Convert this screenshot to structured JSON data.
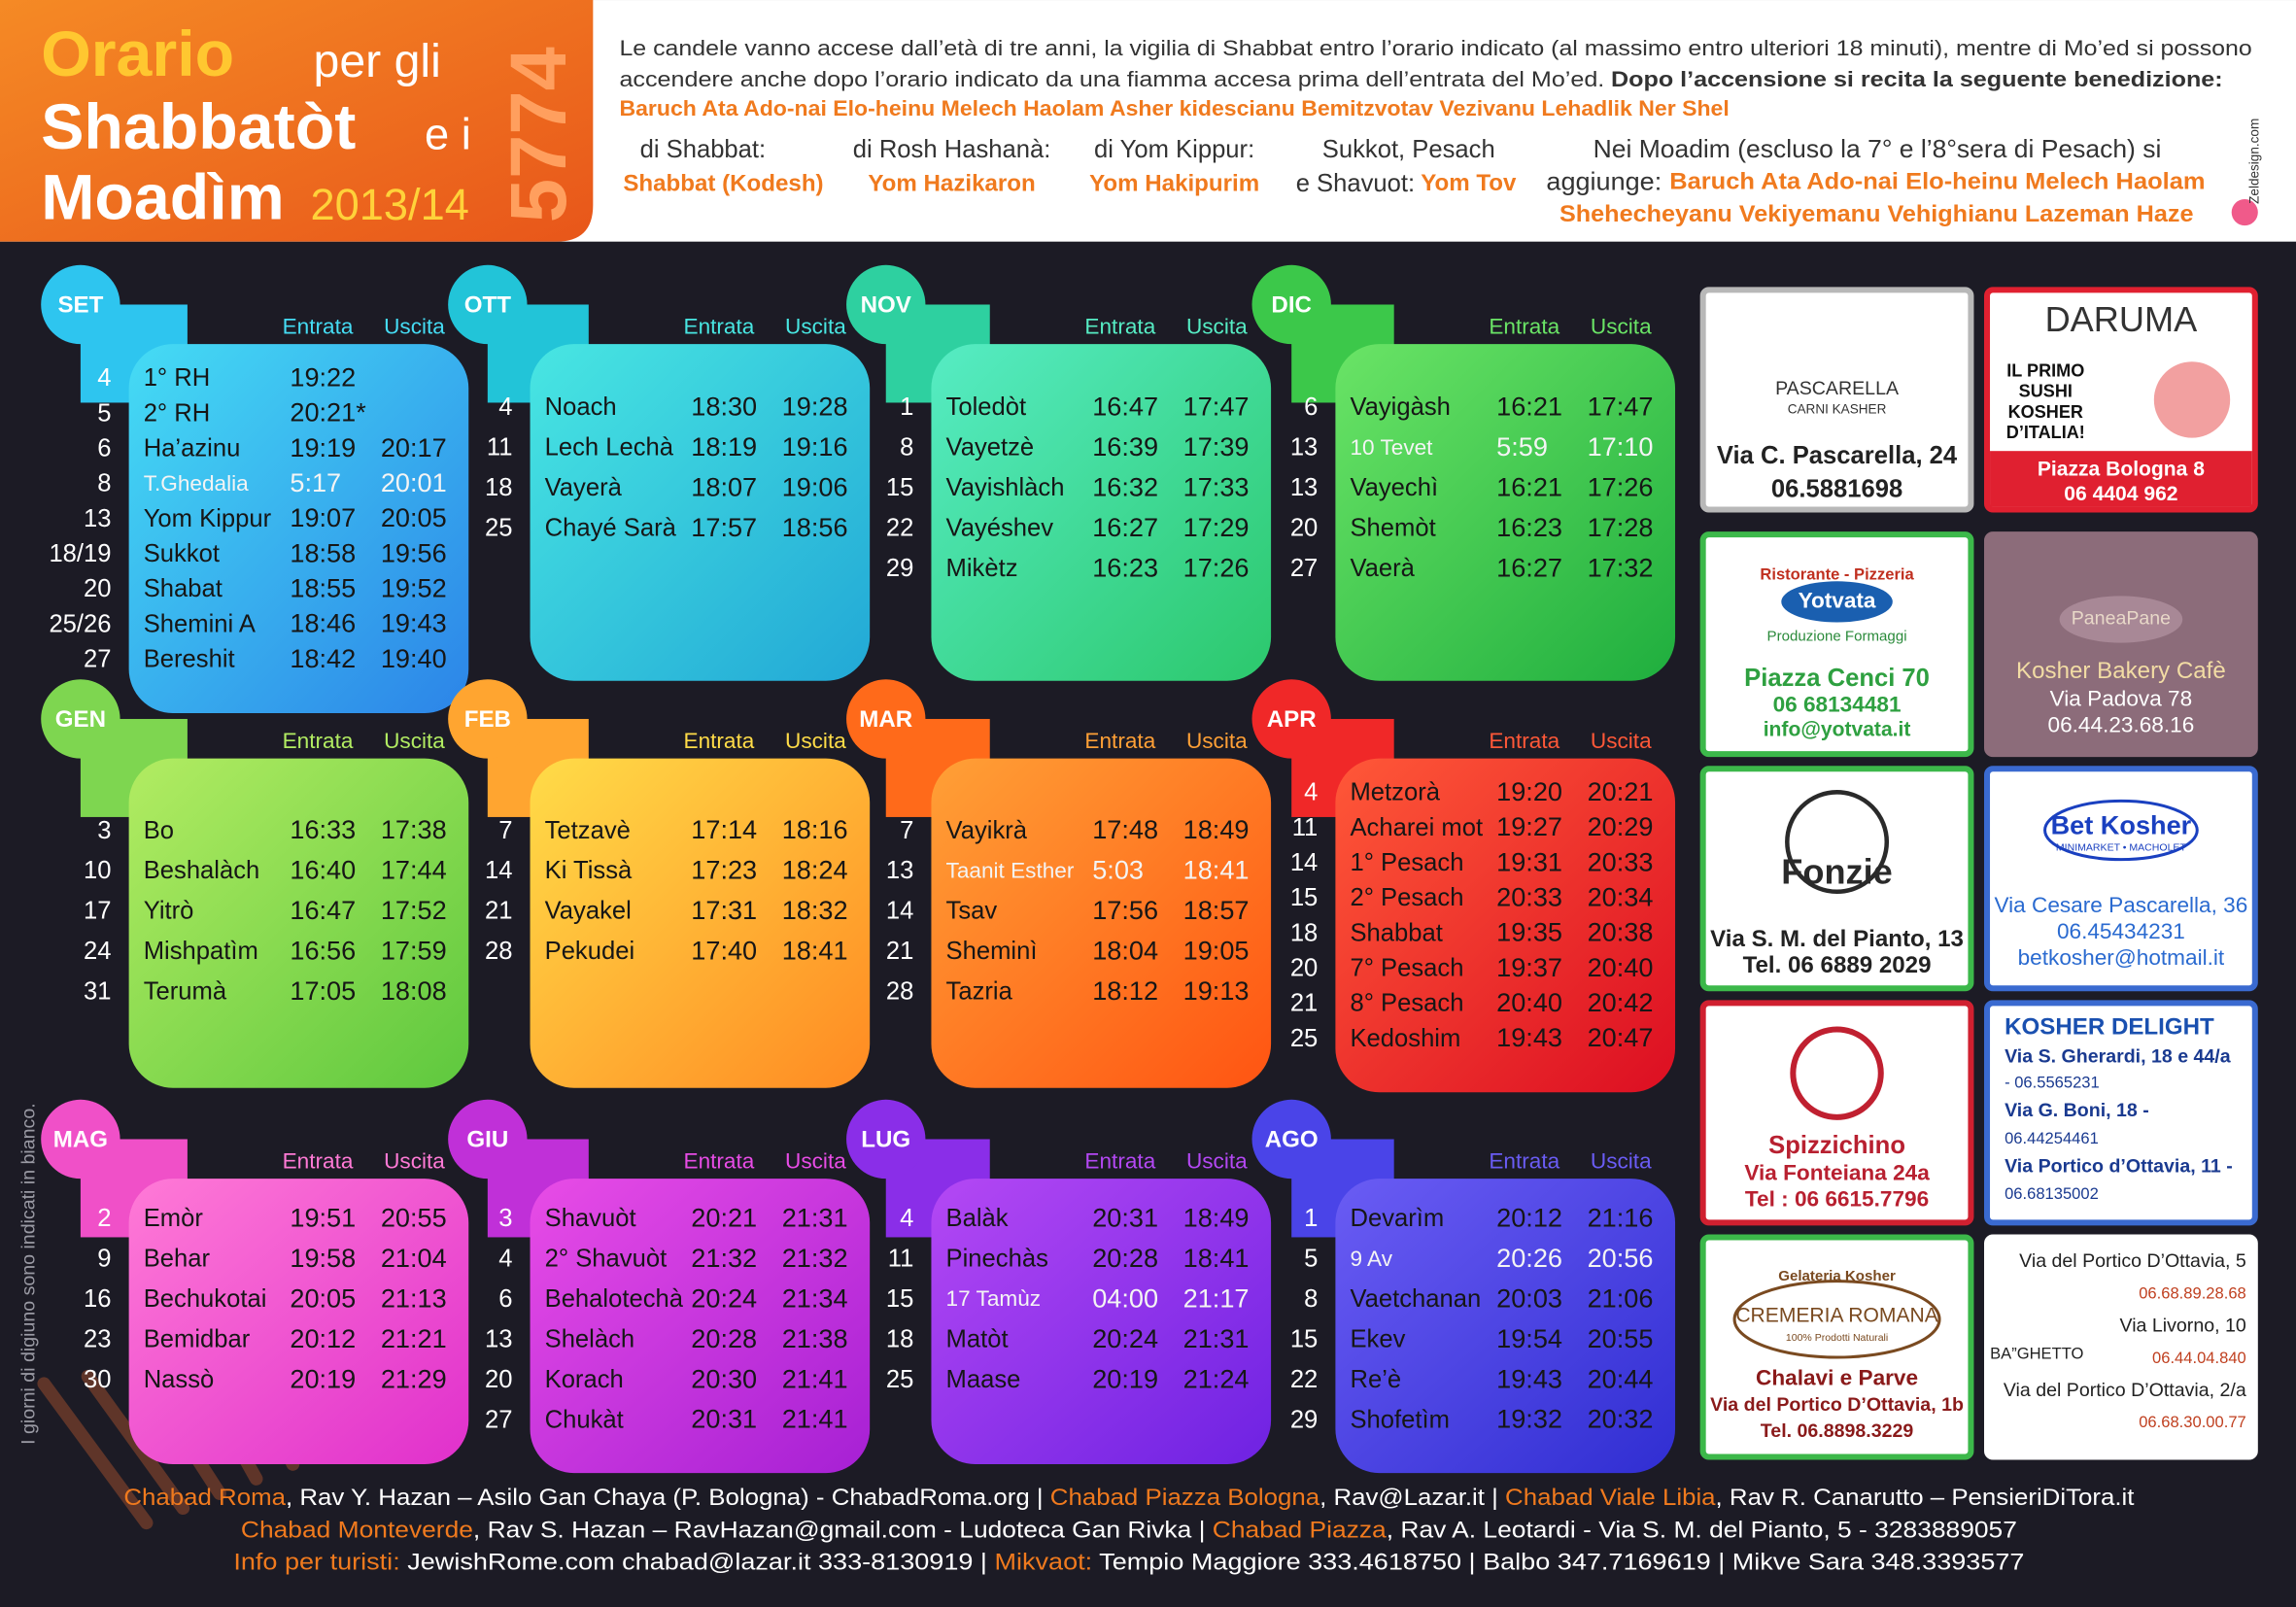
{
  "header": {
    "title": {
      "line1": "Orario",
      "line1b": "per gli",
      "line2": "Shabbatòt",
      "line2b": "e i",
      "line3": "Moadìm",
      "years": "2013/14",
      "hebrew_year": "5774"
    },
    "intro": [
      "Le candele vanno accese dall’età di tre anni, la vigilia di Shabbat entro l’orario indicato (al massimo entro ulteriori 18 minuti), mentre di Mo’ed si possono",
      "accendere anche dopo l’orario indicato da una fiamma accesa prima dell’entrata del Mo’ed.",
      "Dopo l’accensione si recita la seguente benedizione:",
      "Baruch Ata Ado-nai Elo-heinu Melech Haolam Asher kidescianu Bemitzvotav Vezivanu Lehadlik Ner Shel"
    ],
    "blessings": [
      {
        "label": "di Shabbat:",
        "text": "Shabbat (Kodesh)"
      },
      {
        "label": "di Rosh Hashanà:",
        "text": "Yom Hazikaron"
      },
      {
        "label": "di Yom Kippur:",
        "text": "Yom Hakipurim"
      },
      {
        "label": [
          "Sukkot, Pesach",
          "e Shavuot:"
        ],
        "text": "Yom Tov"
      },
      {
        "label": [
          "Nei Moadim (escluso la 7° e l’8°sera di Pesach) si",
          "aggiunge:"
        ],
        "text": [
          "Baruch Ata Ado-nai Elo-heinu Melech Haolam",
          "Shehecheyanu Vekiyemanu Vehighianu Lazeman Haze"
        ]
      }
    ],
    "credit": "Zeldesign.com"
  },
  "columns": [
    "Entrata",
    "Uscita"
  ],
  "months": [
    {
      "name": "SET",
      "rows": [
        {
          "day": "4",
          "name": "1° RH",
          "entrata": "19:22"
        },
        {
          "day": "5",
          "name": "2° RH",
          "entrata": "20:21*"
        },
        {
          "day": "6",
          "name": "Ha’azinu",
          "entrata": "19:19",
          "uscita": "20:17"
        },
        {
          "day": "8",
          "name": "T.Ghedalia",
          "entrata": "5:17",
          "uscita": "20:01",
          "fast": true
        },
        {
          "day": "13",
          "name": "Yom Kippur",
          "entrata": "19:07",
          "uscita": "20:05"
        },
        {
          "day": "18/19",
          "name": "Sukkot",
          "entrata": "18:58",
          "uscita": "19:56"
        },
        {
          "day": "20",
          "name": "Shabat",
          "entrata": "18:55",
          "uscita": "19:52"
        },
        {
          "day": "25/26",
          "name": "Shemini A",
          "entrata": "18:46",
          "uscita": "19:43"
        },
        {
          "day": "27",
          "name": "Bereshit",
          "entrata": "18:42",
          "uscita": "19:40"
        }
      ]
    },
    {
      "name": "OTT",
      "rows": [
        {
          "day": "4",
          "name": "Noach",
          "entrata": "18:30",
          "uscita": "19:28"
        },
        {
          "day": "11",
          "name": "Lech Lechà",
          "entrata": "18:19",
          "uscita": "19:16"
        },
        {
          "day": "18",
          "name": "Vayerà",
          "entrata": "18:07",
          "uscita": "19:06"
        },
        {
          "day": "25",
          "name": "Chayé Sarà",
          "entrata": "17:57",
          "uscita": "18:56"
        }
      ]
    },
    {
      "name": "NOV",
      "rows": [
        {
          "day": "1",
          "name": "Toledòt",
          "entrata": "16:47",
          "uscita": "17:47"
        },
        {
          "day": "8",
          "name": "Vayetzè",
          "entrata": "16:39",
          "uscita": "17:39"
        },
        {
          "day": "15",
          "name": "Vayishlàch",
          "entrata": "16:32",
          "uscita": "17:33"
        },
        {
          "day": "22",
          "name": "Vayéshev",
          "entrata": "16:27",
          "uscita": "17:29"
        },
        {
          "day": "29",
          "name": "Mikètz",
          "entrata": "16:23",
          "uscita": "17:26"
        }
      ]
    },
    {
      "name": "DIC",
      "rows": [
        {
          "day": "6",
          "name": "Vayigàsh",
          "entrata": "16:21",
          "uscita": "17:47"
        },
        {
          "day": "13",
          "name": "10 Tevet",
          "entrata": "5:59",
          "uscita": "17:10",
          "fast": true
        },
        {
          "day": "13",
          "name": "Vayechì",
          "entrata": "16:21",
          "uscita": "17:26"
        },
        {
          "day": "20",
          "name": "Shemòt",
          "entrata": "16:23",
          "uscita": "17:28"
        },
        {
          "day": "27",
          "name": "Vaerà",
          "entrata": "16:27",
          "uscita": "17:32"
        }
      ]
    },
    {
      "name": "GEN",
      "rows": [
        {
          "day": "3",
          "name": "Bo",
          "entrata": "16:33",
          "uscita": "17:38"
        },
        {
          "day": "10",
          "name": "Beshalàch",
          "entrata": "16:40",
          "uscita": "17:44"
        },
        {
          "day": "17",
          "name": "Yitrò",
          "entrata": "16:47",
          "uscita": "17:52"
        },
        {
          "day": "24",
          "name": "Mishpatìm",
          "entrata": "16:56",
          "uscita": "17:59"
        },
        {
          "day": "31",
          "name": "Terumà",
          "entrata": "17:05",
          "uscita": "18:08"
        }
      ]
    },
    {
      "name": "FEB",
      "rows": [
        {
          "day": "7",
          "name": "Tetzavè",
          "entrata": "17:14",
          "uscita": "18:16"
        },
        {
          "day": "14",
          "name": "Ki Tissà",
          "entrata": "17:23",
          "uscita": "18:24"
        },
        {
          "day": "21",
          "name": "Vayakel",
          "entrata": "17:31",
          "uscita": "18:32"
        },
        {
          "day": "28",
          "name": "Pekudei",
          "entrata": "17:40",
          "uscita": "18:41"
        }
      ]
    },
    {
      "name": "MAR",
      "rows": [
        {
          "day": "7",
          "name": "Vayikrà",
          "entrata": "17:48",
          "uscita": "18:49"
        },
        {
          "day": "13",
          "name": "Taanit Esther",
          "entrata": "5:03",
          "uscita": "18:41",
          "fast": true
        },
        {
          "day": "14",
          "name": "Tsav",
          "entrata": "17:56",
          "uscita": "18:57"
        },
        {
          "day": "21",
          "name": "Sheminì",
          "entrata": "18:04",
          "uscita": "19:05"
        },
        {
          "day": "28",
          "name": "Tazria",
          "entrata": "18:12",
          "uscita": "19:13"
        }
      ]
    },
    {
      "name": "APR",
      "rows": [
        {
          "day": "4",
          "name": "Metzorà",
          "entrata": "19:20",
          "uscita": "20:21"
        },
        {
          "day": "11",
          "name": "Acharei mot",
          "entrata": "19:27",
          "uscita": "20:29"
        },
        {
          "day": "14",
          "name": "1° Pesach",
          "entrata": "19:31",
          "uscita": "20:33"
        },
        {
          "day": "15",
          "name": "2° Pesach",
          "entrata": "20:33",
          "uscita": "20:34"
        },
        {
          "day": "18",
          "name": "Shabbat",
          "entrata": "19:35",
          "uscita": "20:38"
        },
        {
          "day": "20",
          "name": "7° Pesach",
          "entrata": "19:37",
          "uscita": "20:40"
        },
        {
          "day": "21",
          "name": "8° Pesach",
          "entrata": "20:40",
          "uscita": "20:42"
        },
        {
          "day": "25",
          "name": "Kedoshim",
          "entrata": "19:43",
          "uscita": "20:47"
        }
      ]
    },
    {
      "name": "MAG",
      "rows": [
        {
          "day": "2",
          "name": "Emòr",
          "entrata": "19:51",
          "uscita": "20:55"
        },
        {
          "day": "9",
          "name": "Behar",
          "entrata": "19:58",
          "uscita": "21:04"
        },
        {
          "day": "16",
          "name": "Bechukotai",
          "entrata": "20:05",
          "uscita": "21:13"
        },
        {
          "day": "23",
          "name": "Bemidbar",
          "entrata": "20:12",
          "uscita": "21:21"
        },
        {
          "day": "30",
          "name": "Nassò",
          "entrata": "20:19",
          "uscita": "21:29"
        }
      ]
    },
    {
      "name": "GIU",
      "rows": [
        {
          "day": "3",
          "name": "Shavuòt",
          "entrata": "20:21",
          "uscita": "21:31"
        },
        {
          "day": "4",
          "name": "2° Shavuòt",
          "entrata": "21:32",
          "uscita": "21:32"
        },
        {
          "day": "6",
          "name": "Behalotechà",
          "entrata": "20:24",
          "uscita": "21:34"
        },
        {
          "day": "13",
          "name": "Shelàch",
          "entrata": "20:28",
          "uscita": "21:38"
        },
        {
          "day": "20",
          "name": "Korach",
          "entrata": "20:30",
          "uscita": "21:41"
        },
        {
          "day": "27",
          "name": "Chukàt",
          "entrata": "20:31",
          "uscita": "21:41"
        }
      ]
    },
    {
      "name": "LUG",
      "rows": [
        {
          "day": "4",
          "name": "Balàk",
          "entrata": "20:31",
          "uscita": "18:49"
        },
        {
          "day": "11",
          "name": "Pinechàs",
          "entrata": "20:28",
          "uscita": "18:41"
        },
        {
          "day": "15",
          "name": "17 Tamùz",
          "entrata": "04:00",
          "uscita": "21:17",
          "fast": true
        },
        {
          "day": "18",
          "name": "Matòt",
          "entrata": "20:24",
          "uscita": "21:31"
        },
        {
          "day": "25",
          "name": "Maase",
          "entrata": "20:19",
          "uscita": "21:24"
        }
      ]
    },
    {
      "name": "AGO",
      "rows": [
        {
          "day": "1",
          "name": "Devarìm",
          "entrata": "20:12",
          "uscita": "21:16"
        },
        {
          "day": "5",
          "name": "9 Av",
          "entrata": "20:26",
          "uscita": "20:56",
          "fast": true
        },
        {
          "day": "8",
          "name": "Vaetchanan",
          "entrata": "20:03",
          "uscita": "21:06"
        },
        {
          "day": "15",
          "name": "Ekev",
          "entrata": "19:54",
          "uscita": "20:55"
        },
        {
          "day": "22",
          "name": "Re’è",
          "entrata": "19:43",
          "uscita": "20:44"
        },
        {
          "day": "29",
          "name": "Shofetìm",
          "entrata": "19:32",
          "uscita": "20:32"
        }
      ]
    }
  ],
  "ads": [
    [
      "PASCARELLA",
      "CARNI KASHER",
      "Via C. Pascarella, 24",
      "06.5881698"
    ],
    [
      "DARUMA",
      "IL PRIMO",
      "SUSHI",
      "KOSHER",
      "D’ITALIA!",
      "Piazza Bologna 8",
      "06 4404 962"
    ],
    [
      "Ristorante - Pizzeria",
      "Yotvata",
      "Produzione Formaggi",
      "Piazza Cenci 70",
      "06 68134481",
      "info@yotvata.it"
    ],
    [
      "PaneaPane",
      "Kosher Bakery Cafè",
      "Via Padova 78",
      "06.44.23.68.16"
    ],
    [
      "Fonzie",
      "Via S. M. del Pianto, 13",
      "Tel. 06 6889 2029"
    ],
    [
      "Bet Kosher",
      "MINIMARKET • MACHOLET",
      "Via Cesare Pascarella, 36",
      "06.45434231",
      "betkosher@hotmail.it"
    ],
    [
      "Spizzichino",
      "Via Fonteiana 24a",
      "Tel : 06 6615.7796"
    ],
    [
      "KOSHER DELIGHT",
      "Via S. Gherardi, 18 e 44/a",
      "- 06.5565231",
      "Via G. Boni, 18 -",
      "06.44254461",
      "Via Portico d’Ottavia, 11 -",
      "06.68135002"
    ],
    [
      "Gelateria Kosher",
      "CREMERIA ROMANA",
      "100% Prodotti Naturali",
      "Chalavi e Parve",
      "Via del Portico D’Ottavia, 1b",
      "Tel. 06.8898.3229"
    ],
    [
      "Via del Portico D’Ottavia, 5",
      "06.68.89.28.68",
      "Via Livorno, 10",
      "06.44.04.840",
      "Via del Portico D’Ottavia, 2/a",
      "06.68.30.00.77",
      "BA”GHETTO"
    ]
  ],
  "side_note": "I giorni di digiuno sono indicati in bianco.",
  "footer": [
    [
      "Chabad Roma",
      ", Rav Y. Hazan – Asilo Gan Chaya (P. Bologna) - ChabadRoma.org | ",
      "Chabad Piazza Bologna",
      ", Rav@Lazar.it | ",
      "Chabad Viale Libia",
      ", Rav R. Canarutto – PensieriDiTora.it"
    ],
    [
      "Chabad Monteverde",
      ", Rav S. Hazan – RavHazan@gmail.com - Ludoteca Gan Rivka | ",
      "Chabad Piazza",
      ", Rav A. Leotardi - Via S. M. del Pianto, 5 - 3283889057"
    ],
    [
      "Info per turisti:",
      " JewishRome.com chabad@lazar.it 333-8130919 |  ",
      "Mikvaot:",
      " Tempio Maggiore 333.4618750 | Balbo 347.7169619 | Mikve Sara 348.3393577"
    ]
  ]
}
